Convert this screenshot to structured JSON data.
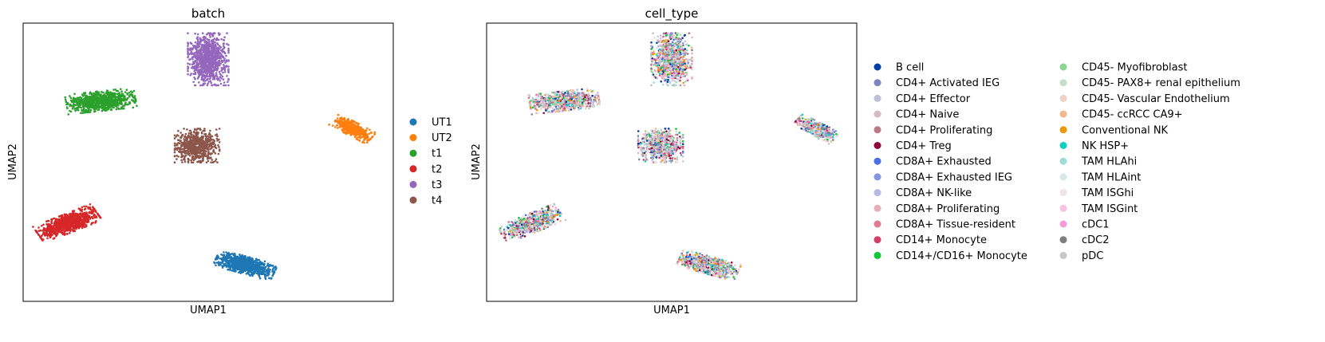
{
  "chart_data": [
    {
      "type": "scatter",
      "title": "batch",
      "xlabel": "UMAP1",
      "ylabel": "UMAP2",
      "xlim": [
        0,
        10
      ],
      "ylim": [
        0,
        10
      ],
      "grid": false,
      "legend_placement": "right",
      "series": [
        {
          "name": "UT1",
          "color": "#1f77b4",
          "center": [
            6.0,
            1.3
          ],
          "spread": [
            0.75,
            0.28
          ],
          "rotation_deg": -20,
          "n": 900
        },
        {
          "name": "UT2",
          "color": "#ff7f0e",
          "center": [
            8.9,
            6.2
          ],
          "spread": [
            0.55,
            0.22
          ],
          "rotation_deg": -35,
          "n": 500
        },
        {
          "name": "t1",
          "color": "#2ca02c",
          "center": [
            2.1,
            7.2
          ],
          "spread": [
            0.85,
            0.32
          ],
          "rotation_deg": 8,
          "n": 900
        },
        {
          "name": "t2",
          "color": "#d62728",
          "center": [
            1.2,
            2.8
          ],
          "spread": [
            0.8,
            0.3
          ],
          "rotation_deg": 28,
          "n": 900
        },
        {
          "name": "t3",
          "color": "#9467bd",
          "center": [
            5.0,
            8.7
          ],
          "spread": [
            0.5,
            0.85
          ],
          "rotation_deg": 0,
          "n": 1000
        },
        {
          "name": "t4",
          "color": "#8c564b",
          "center": [
            4.7,
            5.6
          ],
          "spread": [
            0.55,
            0.55
          ],
          "rotation_deg": 0,
          "n": 700
        }
      ]
    },
    {
      "type": "scatter",
      "title": "cell_type",
      "xlabel": "UMAP1",
      "ylabel": "UMAP2",
      "xlim": [
        0,
        10
      ],
      "ylim": [
        0,
        10
      ],
      "grid": false,
      "legend_placement": "right",
      "clusters": [
        {
          "center": [
            6.0,
            1.3
          ],
          "spread": [
            0.75,
            0.28
          ],
          "rotation_deg": -20,
          "n": 900
        },
        {
          "center": [
            8.9,
            6.2
          ],
          "spread": [
            0.55,
            0.22
          ],
          "rotation_deg": -35,
          "n": 500
        },
        {
          "center": [
            2.1,
            7.2
          ],
          "spread": [
            0.85,
            0.32
          ],
          "rotation_deg": 8,
          "n": 900
        },
        {
          "center": [
            1.2,
            2.8
          ],
          "spread": [
            0.8,
            0.3
          ],
          "rotation_deg": 28,
          "n": 900
        },
        {
          "center": [
            5.0,
            8.7
          ],
          "spread": [
            0.5,
            0.85
          ],
          "rotation_deg": 0,
          "n": 1000
        },
        {
          "center": [
            4.7,
            5.6
          ],
          "spread": [
            0.55,
            0.55
          ],
          "rotation_deg": 0,
          "n": 700
        }
      ],
      "series": [
        {
          "name": "B cell",
          "color": "#023fa5"
        },
        {
          "name": "CD4+ Activated IEG",
          "color": "#7d87b9"
        },
        {
          "name": "CD4+ Effector",
          "color": "#bec1d4"
        },
        {
          "name": "CD4+ Naive",
          "color": "#d6bcc0"
        },
        {
          "name": "CD4+ Proliferating",
          "color": "#bb7784"
        },
        {
          "name": "CD4+ Treg",
          "color": "#8e063b"
        },
        {
          "name": "CD8A+ Exhausted",
          "color": "#4a6fe3"
        },
        {
          "name": "CD8A+ Exhausted IEG",
          "color": "#8595e1"
        },
        {
          "name": "CD8A+ NK-like",
          "color": "#b5bbe3"
        },
        {
          "name": "CD8A+ Proliferating",
          "color": "#e6afb9"
        },
        {
          "name": "CD8A+ Tissue-resident",
          "color": "#e07b91"
        },
        {
          "name": "CD14+ Monocyte",
          "color": "#d33f6a"
        },
        {
          "name": "CD14+/CD16+ Monocyte",
          "color": "#11c638"
        },
        {
          "name": "CD45- Myofibroblast",
          "color": "#8dd593"
        },
        {
          "name": "CD45- PAX8+ renal epithelium",
          "color": "#c6dec7"
        },
        {
          "name": "CD45- Vascular Endothelium",
          "color": "#ead3c6"
        },
        {
          "name": "CD45- ccRCC CA9+",
          "color": "#f0b98d"
        },
        {
          "name": "Conventional NK",
          "color": "#ef9708"
        },
        {
          "name": "NK HSP+",
          "color": "#0fcfc0"
        },
        {
          "name": "TAM HLAhi",
          "color": "#9cded6"
        },
        {
          "name": "TAM HLAint",
          "color": "#d5eae7"
        },
        {
          "name": "TAM ISGhi",
          "color": "#f3e1eb"
        },
        {
          "name": "TAM ISGint",
          "color": "#f6c4e1"
        },
        {
          "name": "cDC1",
          "color": "#f79cd4"
        },
        {
          "name": "cDC2",
          "color": "#7f7f7f"
        },
        {
          "name": "pDC",
          "color": "#c7c7c7"
        }
      ]
    }
  ]
}
